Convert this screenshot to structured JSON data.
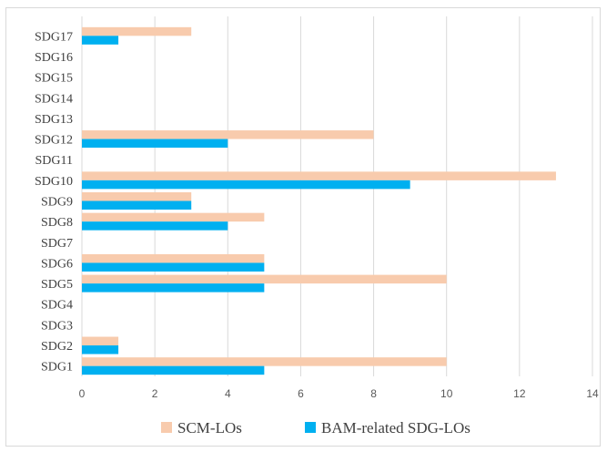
{
  "chart_data": {
    "type": "bar",
    "orientation": "horizontal",
    "categories": [
      "SDG1",
      "SDG2",
      "SDG3",
      "SDG4",
      "SDG5",
      "SDG6",
      "SDG7",
      "SDG8",
      "SDG9",
      "SDG10",
      "SDG11",
      "SDG12",
      "SDG13",
      "SDG14",
      "SDG15",
      "SDG16",
      "SDG17"
    ],
    "series": [
      {
        "name": "SCM-LOs",
        "color": "#f8cbad",
        "values": [
          10,
          1,
          0,
          0,
          10,
          5,
          0,
          5,
          3,
          13,
          0,
          8,
          0,
          0,
          0,
          0,
          3
        ]
      },
      {
        "name": "BAM-related SDG-LOs",
        "color": "#00b0f0",
        "values": [
          5,
          1,
          0,
          0,
          5,
          5,
          0,
          4,
          3,
          9,
          0,
          4,
          0,
          0,
          0,
          0,
          1
        ]
      }
    ],
    "xlim": [
      0,
      14
    ],
    "xticks": [
      0,
      2,
      4,
      6,
      8,
      10,
      12,
      14
    ],
    "grid": true,
    "legend": "bottom",
    "title": "",
    "xlabel": "",
    "ylabel": ""
  }
}
